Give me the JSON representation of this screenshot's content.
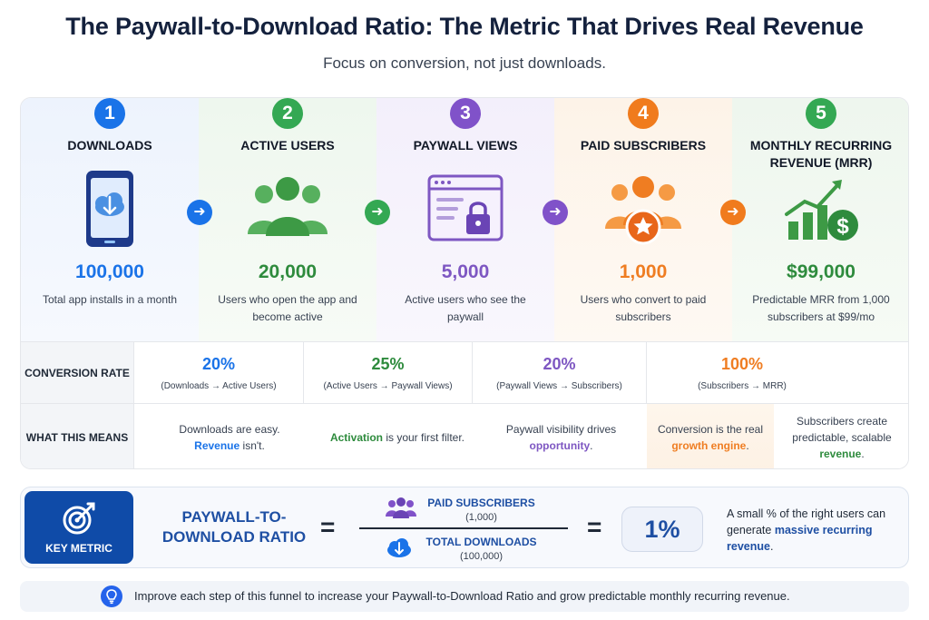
{
  "title": "The Paywall-to-Download Ratio: The Metric That Drives Real Revenue",
  "subtitle": "Focus on conversion, not just downloads.",
  "colors": {
    "blue": "#1a73e8",
    "green": "#34a853",
    "purple": "#8052c9",
    "orange": "#f07b1d",
    "dark_green": "#2e8b3d",
    "navy": "#0f4ba8"
  },
  "stages": [
    {
      "number": "1",
      "name": "DOWNLOADS",
      "value": "100,000",
      "description": "Total app installs in a month",
      "icon": "phone-download-icon"
    },
    {
      "number": "2",
      "name": "ACTIVE USERS",
      "value": "20,000",
      "description": "Users who open the app and become active",
      "icon": "users-group-icon"
    },
    {
      "number": "3",
      "name": "PAYWALL VIEWS",
      "value": "5,000",
      "description": "Active users who see the paywall",
      "icon": "browser-lock-icon"
    },
    {
      "number": "4",
      "name": "PAID SUBSCRIBERS",
      "value": "1,000",
      "description": "Users who convert to paid subscribers",
      "icon": "users-star-icon"
    },
    {
      "number": "5",
      "name": "MONTHLY RECURRING REVENUE (MRR)",
      "value": "$99,000",
      "description": "Predictable MRR from 1,000 subscribers at $99/mo",
      "icon": "growth-chart-dollar-icon"
    }
  ],
  "conversion": {
    "label": "CONVERSION RATE",
    "rates": [
      {
        "value": "20%",
        "detail": "(Downloads → Active Users)"
      },
      {
        "value": "25%",
        "detail": "(Active Users → Paywall Views)"
      },
      {
        "value": "20%",
        "detail": "(Paywall Views → Subscribers)"
      },
      {
        "value": "100%",
        "detail": "(Subscribers → MRR)"
      }
    ]
  },
  "meaning": {
    "label": "WHAT THIS MEANS",
    "items": [
      {
        "before": "Downloads are easy.",
        "highlight": "Revenue",
        "after": " isn't."
      },
      {
        "before": "",
        "highlight": "Activation",
        "after": " is your first filter."
      },
      {
        "before": "Paywall visibility drives ",
        "highlight": "opportunity",
        "after": "."
      },
      {
        "before": "Conversion is the real ",
        "highlight": "growth engine",
        "after": "."
      },
      {
        "before": "Subscribers create predictable, scalable ",
        "highlight": "revenue",
        "after": "."
      }
    ]
  },
  "key_metric": {
    "label": "KEY METRIC",
    "ratio_name": "PAYWALL-TO-DOWNLOAD RATIO",
    "numerator_title": "PAID SUBSCRIBERS",
    "numerator_value": "(1,000)",
    "denominator_title": "TOTAL DOWNLOADS",
    "denominator_value": "(100,000)",
    "result": "1%",
    "note_before": "A small % of the right users can generate ",
    "note_highlight": "massive recurring revenue",
    "note_after": "."
  },
  "tip": "Improve each step of this funnel to increase your Paywall-to-Download Ratio and grow predictable monthly recurring revenue."
}
